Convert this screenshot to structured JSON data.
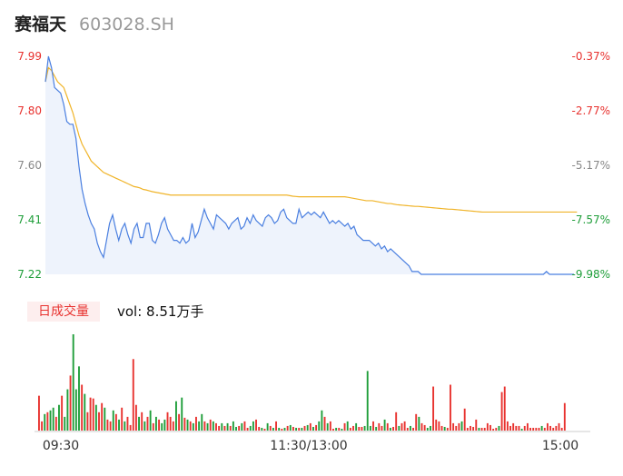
{
  "header": {
    "name": "赛福天",
    "code": "603028.SH"
  },
  "volume_panel": {
    "badge": "日成交量",
    "label": "vol: 8.51万手"
  },
  "colors": {
    "price_line": "#4a7fe0",
    "avg_line": "#f0b429",
    "price_fill": "#eef3fc",
    "up": "#e8322f",
    "down": "#1f9e3a",
    "neutral": "#888888"
  },
  "chart_data": [
    {
      "type": "line",
      "name": "price",
      "yaxis_left": [
        "7.99",
        "7.80",
        "7.60",
        "7.41",
        "7.22"
      ],
      "yaxis_right": [
        "-0.37%",
        "-2.77%",
        "-5.17%",
        "-7.57%",
        "-9.98%"
      ],
      "ylim": [
        7.22,
        7.99
      ],
      "xlabels": [
        "09:30",
        "11:30/13:00",
        "15:00"
      ],
      "grid": false,
      "price": [
        7.9,
        7.99,
        7.95,
        7.88,
        7.87,
        7.86,
        7.82,
        7.76,
        7.75,
        7.75,
        7.7,
        7.6,
        7.52,
        7.47,
        7.43,
        7.4,
        7.38,
        7.33,
        7.3,
        7.28,
        7.34,
        7.4,
        7.43,
        7.38,
        7.34,
        7.38,
        7.4,
        7.36,
        7.33,
        7.38,
        7.4,
        7.35,
        7.35,
        7.4,
        7.4,
        7.34,
        7.33,
        7.36,
        7.4,
        7.42,
        7.38,
        7.36,
        7.34,
        7.34,
        7.33,
        7.35,
        7.33,
        7.34,
        7.4,
        7.35,
        7.37,
        7.41,
        7.45,
        7.42,
        7.4,
        7.38,
        7.43,
        7.42,
        7.41,
        7.4,
        7.38,
        7.4,
        7.41,
        7.42,
        7.38,
        7.39,
        7.42,
        7.4,
        7.43,
        7.41,
        7.4,
        7.39,
        7.42,
        7.43,
        7.42,
        7.4,
        7.41,
        7.44,
        7.45,
        7.42,
        7.41,
        7.4,
        7.4,
        7.45,
        7.42,
        7.43,
        7.44,
        7.43,
        7.44,
        7.43,
        7.42,
        7.44,
        7.42,
        7.4,
        7.41,
        7.4,
        7.41,
        7.4,
        7.39,
        7.4,
        7.38,
        7.39,
        7.36,
        7.35,
        7.34,
        7.34,
        7.34,
        7.33,
        7.32,
        7.33,
        7.31,
        7.32,
        7.3,
        7.31,
        7.3,
        7.29,
        7.28,
        7.27,
        7.26,
        7.25,
        7.23,
        7.23,
        7.23,
        7.22,
        7.22,
        7.22,
        7.22,
        7.22,
        7.22,
        7.22,
        7.22,
        7.22,
        7.22,
        7.22,
        7.22,
        7.22,
        7.22,
        7.22,
        7.22,
        7.22,
        7.22,
        7.22,
        7.22,
        7.22,
        7.22,
        7.22,
        7.22,
        7.22,
        7.22,
        7.22,
        7.22,
        7.22,
        7.22,
        7.22,
        7.22,
        7.22,
        7.22,
        7.22,
        7.22,
        7.22,
        7.22,
        7.22,
        7.22,
        7.22,
        7.23,
        7.22,
        7.22,
        7.22,
        7.22,
        7.22,
        7.22,
        7.22,
        7.22,
        7.22
      ],
      "average": [
        7.9,
        7.95,
        7.94,
        7.92,
        7.9,
        7.89,
        7.88,
        7.85,
        7.82,
        7.79,
        7.75,
        7.71,
        7.68,
        7.66,
        7.64,
        7.62,
        7.61,
        7.6,
        7.59,
        7.58,
        7.575,
        7.57,
        7.565,
        7.56,
        7.555,
        7.55,
        7.545,
        7.54,
        7.535,
        7.53,
        7.528,
        7.525,
        7.52,
        7.518,
        7.515,
        7.512,
        7.51,
        7.508,
        7.506,
        7.504,
        7.502,
        7.5,
        7.5,
        7.5,
        7.5,
        7.5,
        7.5,
        7.5,
        7.5,
        7.5,
        7.5,
        7.5,
        7.5,
        7.5,
        7.5,
        7.5,
        7.5,
        7.5,
        7.5,
        7.5,
        7.5,
        7.5,
        7.5,
        7.5,
        7.5,
        7.5,
        7.5,
        7.5,
        7.5,
        7.5,
        7.5,
        7.5,
        7.5,
        7.5,
        7.5,
        7.5,
        7.5,
        7.5,
        7.5,
        7.5,
        7.498,
        7.496,
        7.495,
        7.494,
        7.494,
        7.494,
        7.494,
        7.494,
        7.494,
        7.494,
        7.494,
        7.494,
        7.494,
        7.494,
        7.494,
        7.494,
        7.494,
        7.494,
        7.494,
        7.492,
        7.49,
        7.488,
        7.486,
        7.484,
        7.482,
        7.48,
        7.48,
        7.48,
        7.478,
        7.476,
        7.474,
        7.472,
        7.47,
        7.47,
        7.468,
        7.466,
        7.465,
        7.464,
        7.463,
        7.462,
        7.461,
        7.46,
        7.46,
        7.459,
        7.458,
        7.457,
        7.456,
        7.455,
        7.454,
        7.453,
        7.452,
        7.451,
        7.45,
        7.45,
        7.449,
        7.448,
        7.447,
        7.446,
        7.445,
        7.444,
        7.443,
        7.442,
        7.441,
        7.44,
        7.44,
        7.44,
        7.44,
        7.44,
        7.44,
        7.44,
        7.44,
        7.44,
        7.44,
        7.44,
        7.44,
        7.44,
        7.44,
        7.44,
        7.44,
        7.44,
        7.44,
        7.44,
        7.44,
        7.44,
        7.44,
        7.44,
        7.44,
        7.44,
        7.44,
        7.44,
        7.44,
        7.44,
        7.44,
        7.44,
        7.44
      ]
    },
    {
      "type": "bar",
      "name": "volume",
      "values": [
        38,
        10,
        18,
        20,
        22,
        25,
        15,
        28,
        38,
        15,
        45,
        60,
        105,
        45,
        70,
        50,
        40,
        20,
        36,
        35,
        28,
        20,
        30,
        25,
        12,
        10,
        22,
        18,
        12,
        25,
        10,
        15,
        6,
        78,
        28,
        15,
        20,
        10,
        15,
        22,
        8,
        15,
        12,
        8,
        12,
        20,
        15,
        10,
        32,
        18,
        36,
        14,
        12,
        10,
        8,
        15,
        10,
        18,
        10,
        8,
        12,
        10,
        8,
        5,
        8,
        5,
        8,
        5,
        10,
        4,
        5,
        8,
        10,
        3,
        5,
        10,
        12,
        4,
        3,
        2,
        8,
        5,
        3,
        10,
        3,
        2,
        3,
        5,
        6,
        4,
        3,
        3,
        3,
        5,
        6,
        8,
        4,
        6,
        10,
        22,
        15,
        8,
        10,
        2,
        3,
        3,
        2,
        8,
        10,
        3,
        5,
        8,
        4,
        4,
        5,
        65,
        5,
        10,
        4,
        8,
        5,
        12,
        8,
        3,
        4,
        20,
        5,
        8,
        10,
        3,
        5,
        3,
        18,
        15,
        8,
        6,
        3,
        5,
        48,
        12,
        10,
        5,
        4,
        3,
        50,
        8,
        5,
        8,
        10,
        24,
        3,
        5,
        4,
        12,
        3,
        3,
        3,
        8,
        6,
        2,
        3,
        5,
        42,
        48,
        10,
        5,
        8,
        5,
        5,
        2,
        5,
        8,
        3,
        3,
        3,
        3,
        5,
        3,
        8,
        5,
        3,
        5,
        8,
        3,
        30
      ],
      "colors": [
        "u",
        "u",
        "d",
        "u",
        "d",
        "d",
        "u",
        "d",
        "u",
        "d",
        "d",
        "u",
        "d",
        "d",
        "d",
        "u",
        "d",
        "u",
        "u",
        "u",
        "d",
        "u",
        "u",
        "d",
        "u",
        "u",
        "d",
        "u",
        "d",
        "u",
        "d",
        "u",
        "u",
        "u",
        "u",
        "d",
        "u",
        "d",
        "u",
        "d",
        "u",
        "d",
        "u",
        "d",
        "d",
        "u",
        "u",
        "u",
        "d",
        "u",
        "d",
        "u",
        "d",
        "u",
        "d",
        "u",
        "d",
        "d",
        "u",
        "d",
        "u",
        "d",
        "u",
        "u",
        "d",
        "u",
        "d",
        "u",
        "d",
        "d",
        "u",
        "d",
        "u",
        "u",
        "d",
        "d",
        "u",
        "u",
        "d",
        "u",
        "d",
        "u",
        "d",
        "u",
        "d",
        "u",
        "d",
        "u",
        "d",
        "u",
        "d",
        "u",
        "d",
        "u",
        "d",
        "u",
        "d",
        "u",
        "d",
        "d",
        "u",
        "d",
        "u",
        "u",
        "d",
        "u",
        "d",
        "u",
        "d",
        "u",
        "u",
        "d",
        "u",
        "u",
        "d",
        "d",
        "d",
        "u",
        "d",
        "u",
        "u",
        "d",
        "u",
        "d",
        "u",
        "u",
        "d",
        "u",
        "u",
        "u",
        "d",
        "u",
        "u",
        "d",
        "u",
        "u",
        "d",
        "d",
        "u",
        "u",
        "u",
        "u",
        "d",
        "u",
        "u",
        "u",
        "u",
        "u",
        "d",
        "u",
        "u",
        "u",
        "u",
        "u",
        "d",
        "u",
        "u",
        "u",
        "u",
        "u",
        "u",
        "d",
        "u",
        "u",
        "u",
        "u",
        "u",
        "u",
        "u",
        "d",
        "u",
        "u",
        "u",
        "u",
        "u",
        "u",
        "d",
        "u",
        "u",
        "u",
        "u",
        "u",
        "u",
        "u",
        "u",
        "n"
      ]
    }
  ]
}
